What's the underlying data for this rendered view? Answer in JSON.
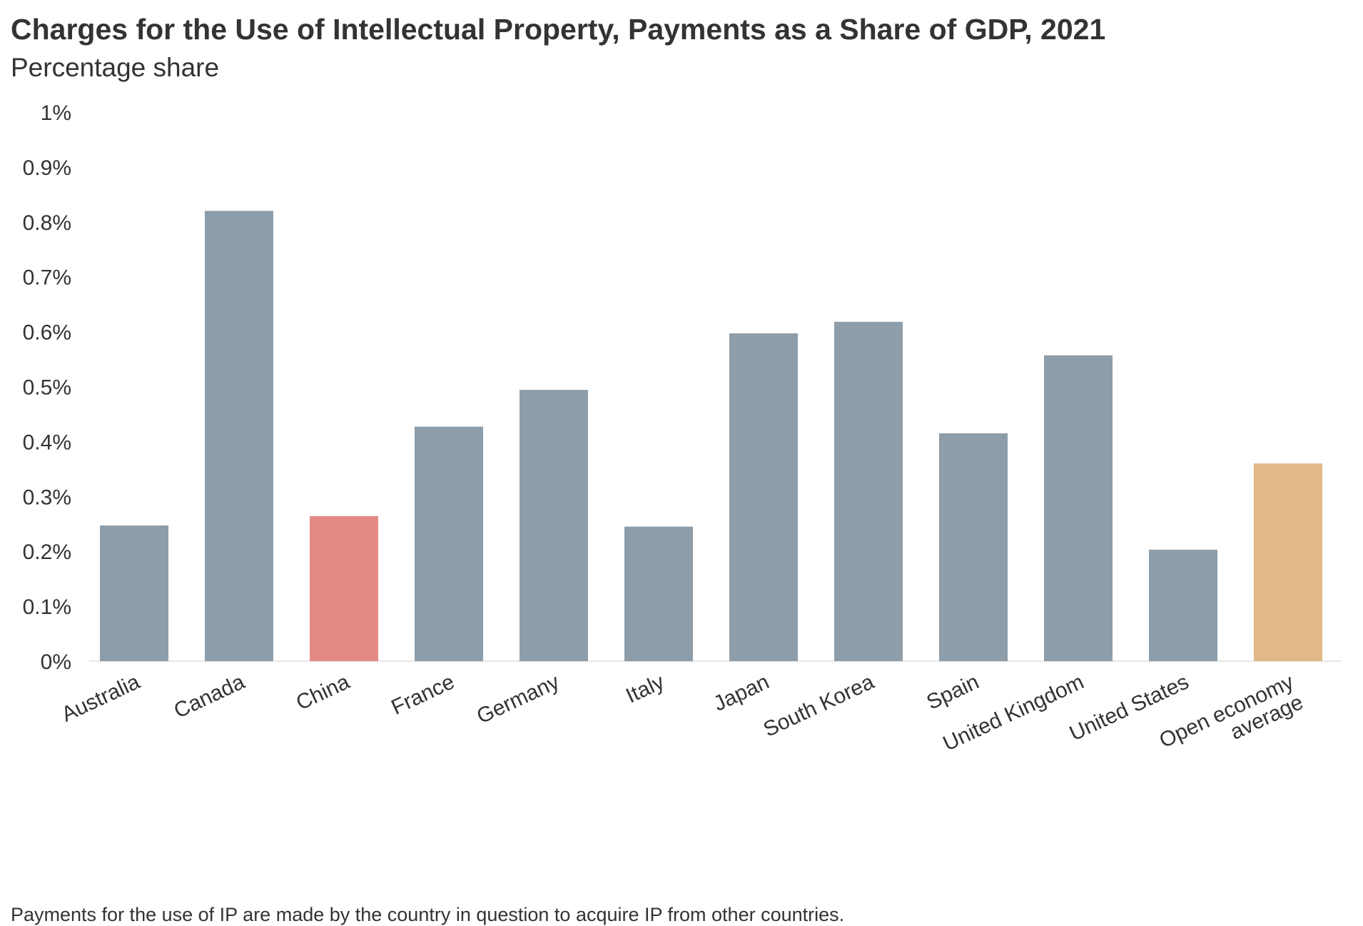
{
  "chart_data": {
    "type": "bar",
    "title": "Charges for the Use of Intellectual Property, Payments as a Share of GDP, 2021",
    "subtitle": "Percentage share",
    "xlabel": "",
    "ylabel": "",
    "ylim": [
      0,
      1
    ],
    "yticks": [
      {
        "value": 0,
        "label": "0%"
      },
      {
        "value": 0.1,
        "label": "0.1%"
      },
      {
        "value": 0.2,
        "label": "0.2%"
      },
      {
        "value": 0.3,
        "label": "0.3%"
      },
      {
        "value": 0.4,
        "label": "0.4%"
      },
      {
        "value": 0.5,
        "label": "0.5%"
      },
      {
        "value": 0.6,
        "label": "0.6%"
      },
      {
        "value": 0.7,
        "label": "0.7%"
      },
      {
        "value": 0.8,
        "label": "0.8%"
      },
      {
        "value": 0.9,
        "label": "0.9%"
      },
      {
        "value": 1,
        "label": "1%"
      }
    ],
    "categories": [
      "Australia",
      "Canada",
      "China",
      "France",
      "Germany",
      "Italy",
      "Japan",
      "South Korea",
      "Spain",
      "United Kingdom",
      "United States",
      "Open economy average"
    ],
    "category_label_lines": [
      [
        "Australia"
      ],
      [
        "Canada"
      ],
      [
        "China"
      ],
      [
        "France"
      ],
      [
        "Germany"
      ],
      [
        "Italy"
      ],
      [
        "Japan"
      ],
      [
        "South Korea"
      ],
      [
        "Spain"
      ],
      [
        "United Kingdom"
      ],
      [
        "United States"
      ],
      [
        "Open economy",
        "average"
      ]
    ],
    "values": [
      0.247,
      0.82,
      0.264,
      0.427,
      0.494,
      0.245,
      0.597,
      0.618,
      0.415,
      0.557,
      0.203,
      0.36
    ],
    "bar_colors": [
      "#8d9da9",
      "#8d9da9",
      "#e38a84",
      "#8d9da9",
      "#8d9da9",
      "#8d9da9",
      "#8d9da9",
      "#8d9da9",
      "#8d9da9",
      "#8d9da9",
      "#8d9da9",
      "#e3b887"
    ],
    "grid": false,
    "legend": "none",
    "footnote": "Payments for the use of IP are made by the country in question to acquire IP from other countries."
  }
}
